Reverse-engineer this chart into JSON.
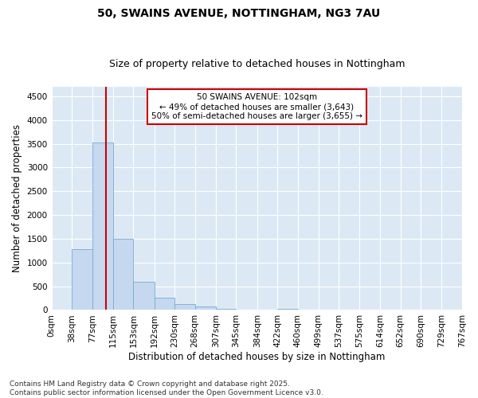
{
  "title": "50, SWAINS AVENUE, NOTTINGHAM, NG3 7AU",
  "subtitle": "Size of property relative to detached houses in Nottingham",
  "xlabel": "Distribution of detached houses by size in Nottingham",
  "ylabel": "Number of detached properties",
  "bins": [
    0,
    38,
    77,
    115,
    153,
    192,
    230,
    268,
    307,
    345,
    384,
    422,
    460,
    499,
    537,
    575,
    614,
    652,
    690,
    729,
    767
  ],
  "bin_labels": [
    "0sqm",
    "38sqm",
    "77sqm",
    "115sqm",
    "153sqm",
    "192sqm",
    "230sqm",
    "268sqm",
    "307sqm",
    "345sqm",
    "384sqm",
    "422sqm",
    "460sqm",
    "499sqm",
    "537sqm",
    "575sqm",
    "614sqm",
    "652sqm",
    "690sqm",
    "729sqm",
    "767sqm"
  ],
  "bar_heights": [
    10,
    1280,
    3530,
    1500,
    600,
    260,
    130,
    70,
    30,
    10,
    0,
    30,
    0,
    0,
    0,
    0,
    0,
    0,
    0,
    0
  ],
  "bar_color": "#c5d8f0",
  "bar_edge_color": "#7aaad0",
  "plot_bg_color": "#dce9f5",
  "fig_bg_color": "#ffffff",
  "ylim": [
    0,
    4700
  ],
  "yticks": [
    0,
    500,
    1000,
    1500,
    2000,
    2500,
    3000,
    3500,
    4000,
    4500
  ],
  "property_size": 102,
  "vline_color": "#cc0000",
  "annotation_line1": "50 SWAINS AVENUE: 102sqm",
  "annotation_line2": "← 49% of detached houses are smaller (3,643)",
  "annotation_line3": "50% of semi-detached houses are larger (3,655) →",
  "annotation_box_color": "#ffffff",
  "annotation_box_edge": "#cc0000",
  "grid_color": "#ffffff",
  "footer_text": "Contains HM Land Registry data © Crown copyright and database right 2025.\nContains public sector information licensed under the Open Government Licence v3.0.",
  "title_fontsize": 10,
  "subtitle_fontsize": 9,
  "axis_label_fontsize": 8.5,
  "tick_fontsize": 7.5,
  "annotation_fontsize": 7.5,
  "footer_fontsize": 6.5
}
